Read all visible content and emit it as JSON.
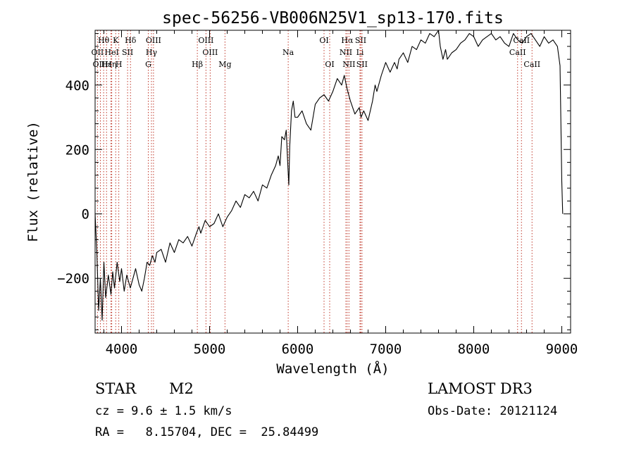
{
  "chart_data": {
    "type": "line",
    "title": "spec-56256-VB006N25V1_sp13-170.fits",
    "xlabel": "Wavelength (Å)",
    "ylabel": "Flux (relative)",
    "xlim": [
      3700,
      9100
    ],
    "ylim": [
      -370,
      570
    ],
    "xticks": [
      4000,
      5000,
      6000,
      7000,
      8000,
      9000
    ],
    "yticks": [
      -200,
      0,
      200,
      400
    ],
    "spectrum": {
      "x": [
        3700,
        3720,
        3740,
        3760,
        3780,
        3800,
        3820,
        3850,
        3880,
        3900,
        3920,
        3950,
        3980,
        4000,
        4030,
        4060,
        4100,
        4130,
        4160,
        4200,
        4230,
        4260,
        4290,
        4320,
        4350,
        4380,
        4400,
        4450,
        4500,
        4550,
        4600,
        4650,
        4700,
        4750,
        4800,
        4850,
        4880,
        4900,
        4950,
        5000,
        5050,
        5100,
        5150,
        5200,
        5250,
        5300,
        5350,
        5400,
        5450,
        5500,
        5550,
        5600,
        5650,
        5700,
        5750,
        5780,
        5800,
        5820,
        5850,
        5870,
        5890,
        5900,
        5910,
        5930,
        5950,
        5970,
        6000,
        6050,
        6100,
        6150,
        6200,
        6250,
        6300,
        6350,
        6400,
        6450,
        6500,
        6530,
        6560,
        6600,
        6650,
        6700,
        6720,
        6750,
        6800,
        6850,
        6880,
        6900,
        6950,
        7000,
        7050,
        7100,
        7130,
        7150,
        7200,
        7250,
        7300,
        7350,
        7400,
        7450,
        7500,
        7550,
        7600,
        7620,
        7650,
        7680,
        7700,
        7750,
        7800,
        7850,
        7900,
        7950,
        8000,
        8050,
        8100,
        8150,
        8200,
        8250,
        8300,
        8350,
        8400,
        8450,
        8500,
        8550,
        8600,
        8650,
        8700,
        8750,
        8800,
        8850,
        8900,
        8950,
        8980,
        9000,
        9010
      ],
      "y": [
        0,
        -120,
        -300,
        -200,
        -330,
        -150,
        -260,
        -190,
        -250,
        -180,
        -230,
        -150,
        -210,
        -170,
        -240,
        -190,
        -230,
        -200,
        -170,
        -220,
        -240,
        -200,
        -150,
        -160,
        -130,
        -150,
        -120,
        -110,
        -150,
        -90,
        -120,
        -80,
        -90,
        -70,
        -100,
        -60,
        -40,
        -60,
        -20,
        -40,
        -30,
        0,
        -40,
        -10,
        10,
        40,
        20,
        60,
        50,
        70,
        40,
        90,
        80,
        120,
        150,
        180,
        150,
        240,
        230,
        260,
        140,
        90,
        210,
        320,
        350,
        300,
        300,
        320,
        280,
        260,
        340,
        360,
        370,
        350,
        380,
        420,
        400,
        430,
        390,
        350,
        310,
        330,
        300,
        320,
        290,
        350,
        400,
        380,
        430,
        470,
        440,
        470,
        450,
        480,
        500,
        470,
        520,
        510,
        540,
        530,
        560,
        550,
        570,
        520,
        480,
        510,
        480,
        500,
        510,
        530,
        540,
        560,
        550,
        520,
        540,
        550,
        560,
        540,
        550,
        530,
        520,
        560,
        540,
        530,
        550,
        560,
        540,
        520,
        550,
        530,
        540,
        520,
        460,
        100,
        0
      ]
    },
    "lines": [
      {
        "label": "Hθ",
        "x": 3797,
        "tier": 0
      },
      {
        "label": "OII",
        "x": 3727,
        "tier": 1
      },
      {
        "label": "OIII",
        "x": 3760,
        "tier": 2
      },
      {
        "label": "K",
        "x": 3934,
        "tier": 0
      },
      {
        "label": "HeI",
        "x": 3889,
        "tier": 1
      },
      {
        "label": "Hε",
        "x": 3830,
        "tier": 2
      },
      {
        "label": "Hη",
        "x": 3880,
        "tier": 2
      },
      {
        "label": "SII",
        "x": 4069,
        "tier": 1
      },
      {
        "label": "H",
        "x": 3969,
        "tier": 2
      },
      {
        "label": "Hδ",
        "x": 4102,
        "tier": 0
      },
      {
        "label": "OIII",
        "x": 4363,
        "tier": 0
      },
      {
        "label": "Hγ",
        "x": 4340,
        "tier": 1
      },
      {
        "label": "G",
        "x": 4304,
        "tier": 2
      },
      {
        "label": "OIII",
        "x": 4959,
        "tier": 0
      },
      {
        "label": "OIII",
        "x": 5007,
        "tier": 1
      },
      {
        "label": "Hβ",
        "x": 4861,
        "tier": 2
      },
      {
        "label": "Mg",
        "x": 5175,
        "tier": 2
      },
      {
        "label": "Na",
        "x": 5893,
        "tier": 1
      },
      {
        "label": "OI",
        "x": 6300,
        "tier": 0
      },
      {
        "label": "OI",
        "x": 6364,
        "tier": 2
      },
      {
        "label": "Hα",
        "x": 6563,
        "tier": 0
      },
      {
        "label": "SII",
        "x": 6716,
        "tier": 0
      },
      {
        "label": "NII",
        "x": 6548,
        "tier": 1
      },
      {
        "label": "Li",
        "x": 6708,
        "tier": 1
      },
      {
        "label": "NII",
        "x": 6583,
        "tier": 2
      },
      {
        "label": "SII",
        "x": 6731,
        "tier": 2
      },
      {
        "label": "CaII",
        "x": 8542,
        "tier": 0
      },
      {
        "label": "CaII",
        "x": 8498,
        "tier": 1
      },
      {
        "label": "CaII",
        "x": 8662,
        "tier": 2
      }
    ]
  },
  "info": {
    "class": "STAR",
    "subclass": "M2",
    "survey": "LAMOST DR3",
    "cz": "cz = 9.6 ± 1.5 km/s",
    "obs_date": "Obs-Date: 20121124",
    "coords": "RA =   8.15704, DEC =  25.84499"
  },
  "colors": {
    "spectrum": "#000000",
    "line_marker": "#c0392b",
    "axis": "#000000"
  }
}
